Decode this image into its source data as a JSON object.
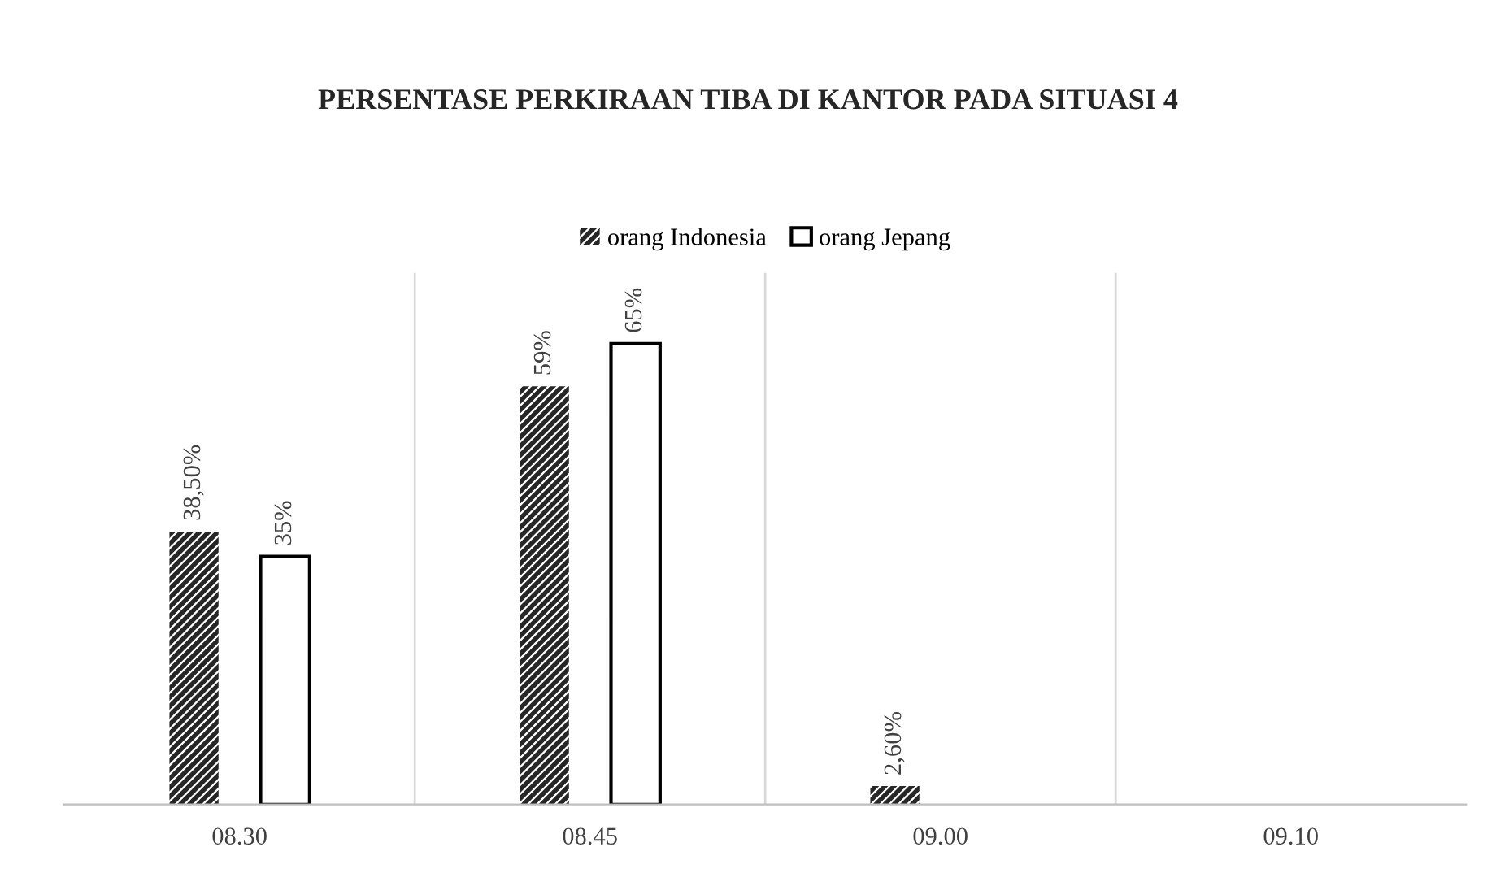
{
  "chart_data": {
    "type": "bar",
    "title": "PERSENTASE PERKIRAAN TIBA DI KANTOR PADA SITUASI 4",
    "categories": [
      "08.30",
      "08.45",
      "09.00",
      "09.10"
    ],
    "series": [
      {
        "name": "orang Indonesia",
        "color": "#262626",
        "values": [
          38.5,
          59,
          2.6,
          null
        ],
        "value_labels": [
          "38,50%",
          "59%",
          "2,60%",
          null
        ]
      },
      {
        "name": "orang Jepang",
        "color": "#ffffff",
        "values": [
          35,
          65,
          null,
          null
        ],
        "value_labels": [
          "35%",
          "65%",
          null,
          null
        ]
      }
    ],
    "ylim": [
      0,
      75
    ],
    "legend": "top",
    "grid": "x"
  }
}
